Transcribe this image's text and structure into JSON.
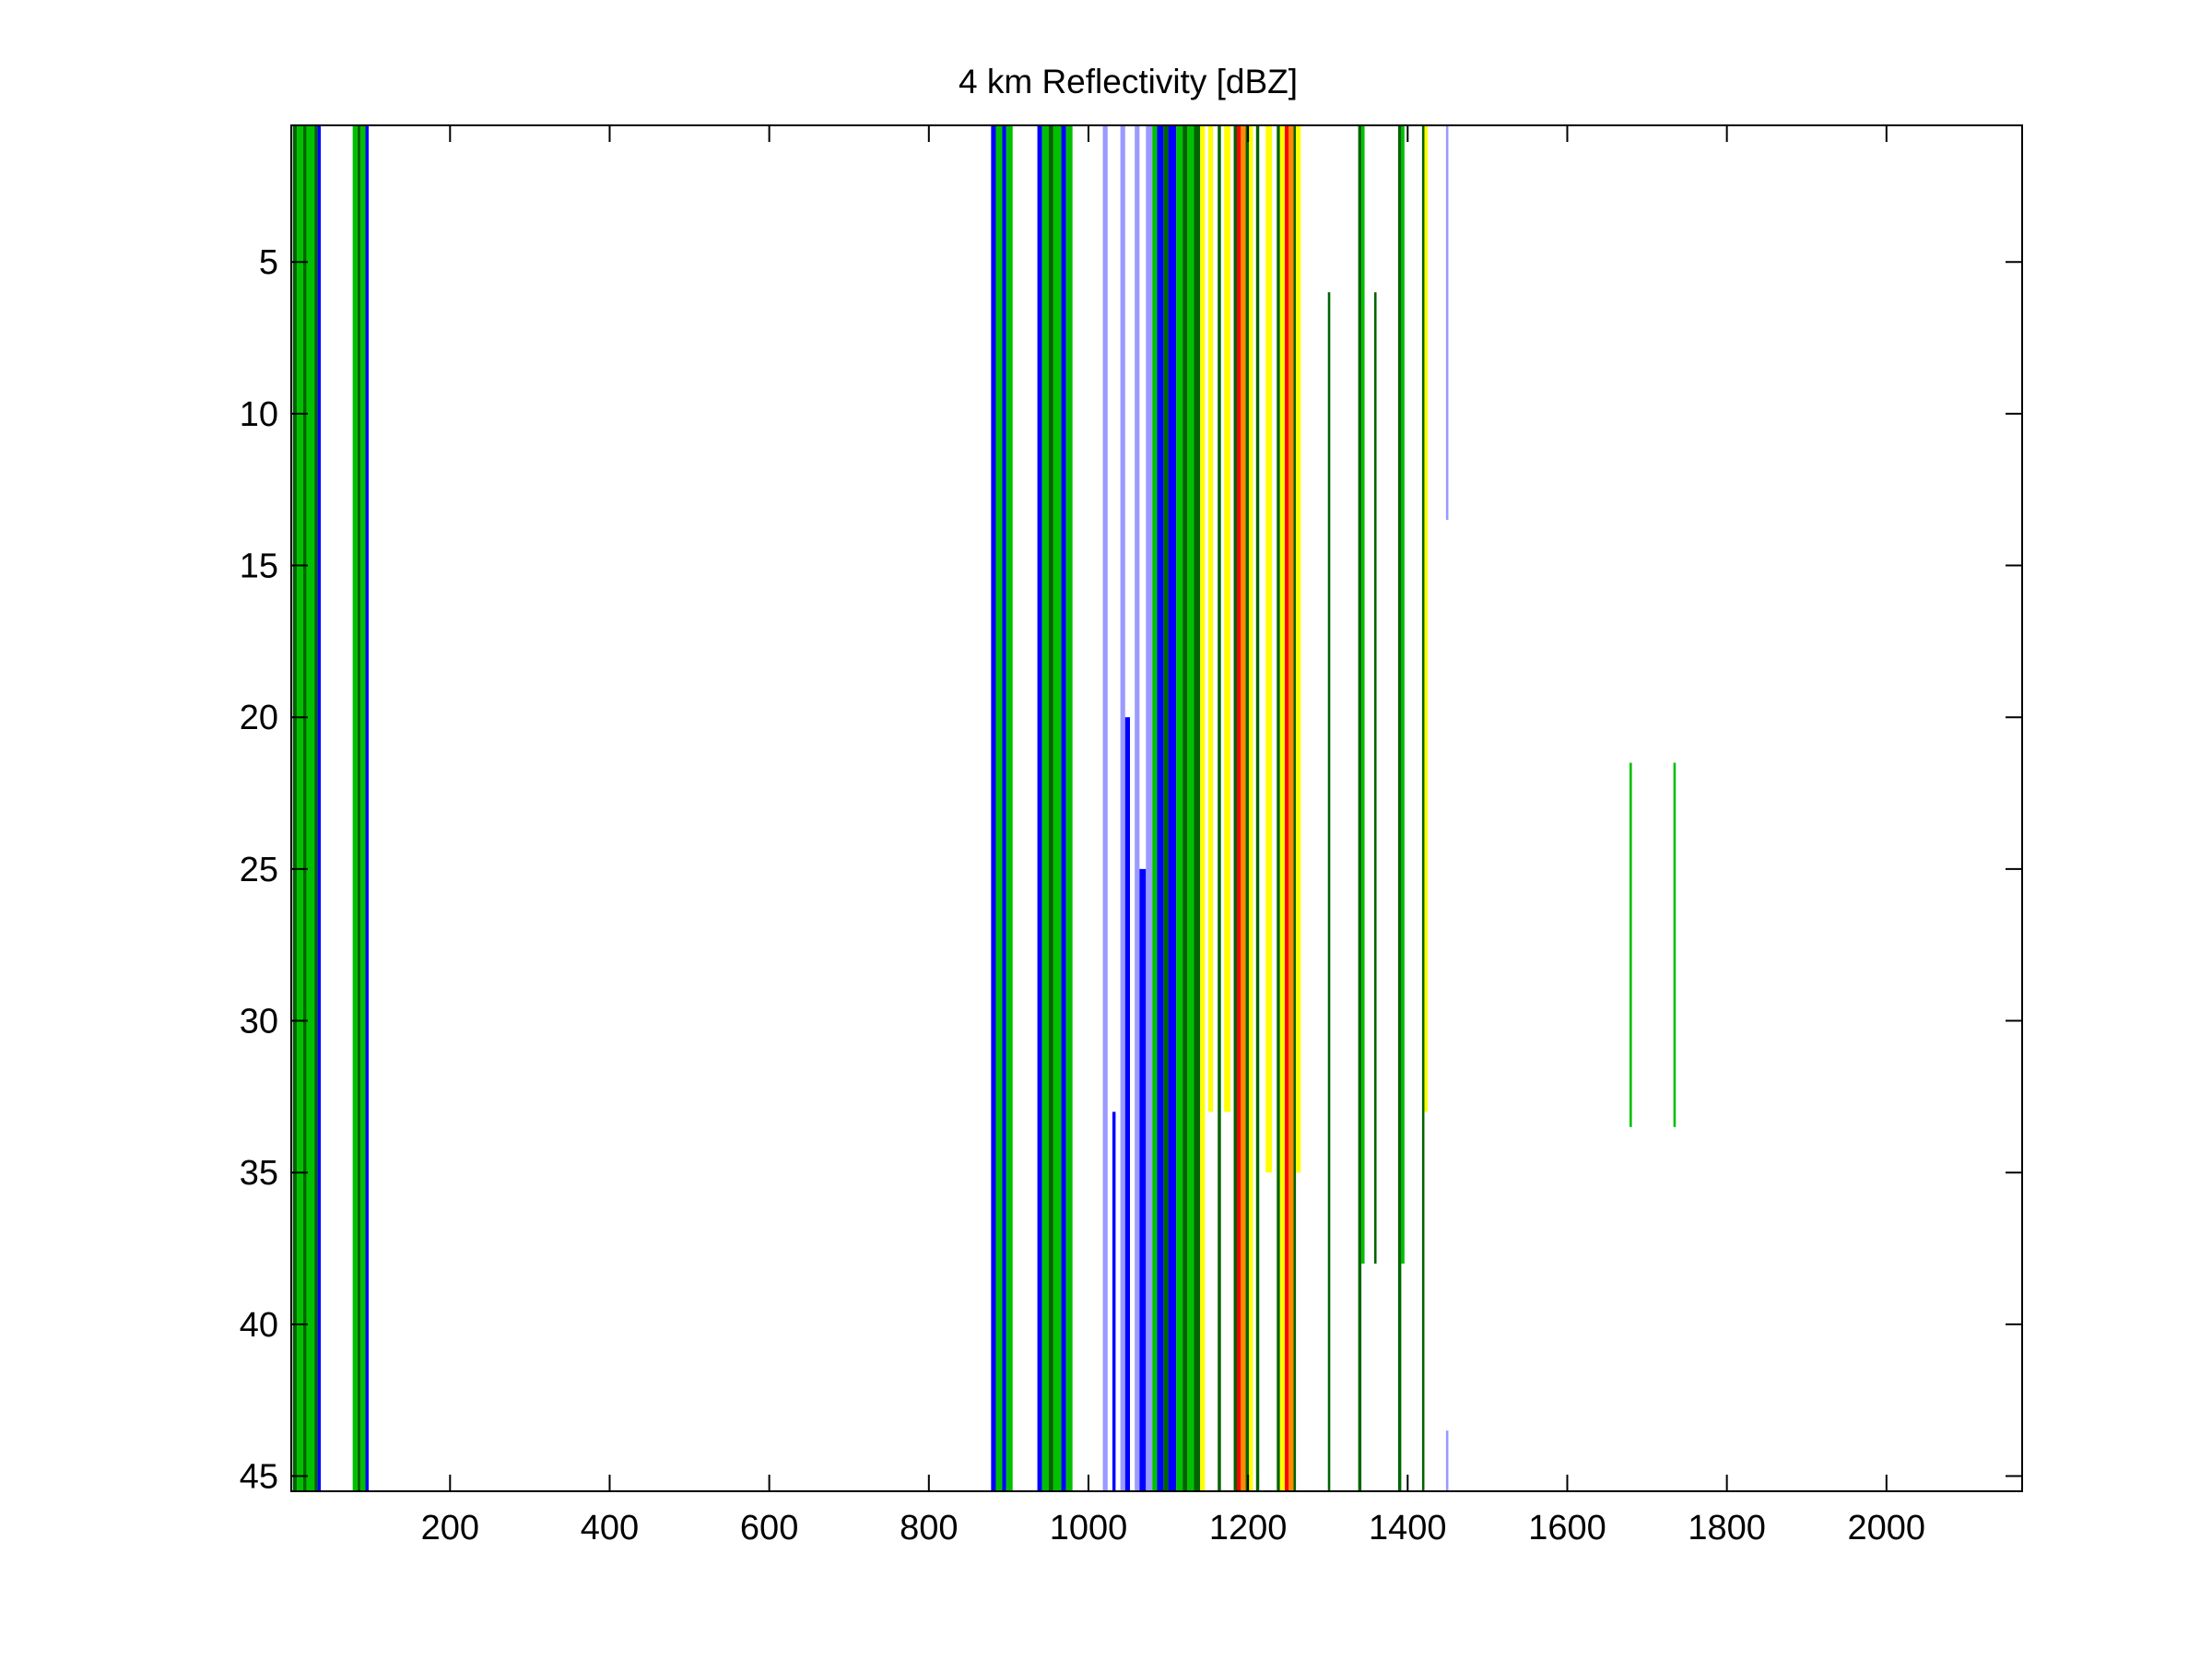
{
  "chart_data": {
    "type": "heatmap",
    "title": "4 km Reflectivity [dBZ]",
    "xlabel": "",
    "ylabel": "",
    "xlim": [
      1,
      2170
    ],
    "ylim": [
      0.5,
      45.5
    ],
    "y_reversed": true,
    "grid": false,
    "x_ticks": [
      200,
      400,
      600,
      800,
      1000,
      1200,
      1400,
      1600,
      1800,
      2000
    ],
    "y_ticks": [
      5,
      10,
      15,
      20,
      25,
      30,
      35,
      40,
      45
    ],
    "colors": {
      "blue": "#0000ff",
      "light_blue": "#9a9aff",
      "green": "#00c000",
      "dark_green": "#006400",
      "yellow": "#ffff00",
      "orange": "#ff8c00",
      "red": "#ff0000"
    },
    "bands": [
      {
        "x0": 3,
        "x1": 8,
        "y0": 0.5,
        "y1": 45.5,
        "level": "dark_green"
      },
      {
        "x0": 8,
        "x1": 16,
        "y0": 0.5,
        "y1": 45.5,
        "level": "green"
      },
      {
        "x0": 16,
        "x1": 20,
        "y0": 0.5,
        "y1": 45.5,
        "level": "dark_green"
      },
      {
        "x0": 20,
        "x1": 30,
        "y0": 0.5,
        "y1": 45.5,
        "level": "green"
      },
      {
        "x0": 30,
        "x1": 34,
        "y0": 0.5,
        "y1": 45.5,
        "level": "dark_green"
      },
      {
        "x0": 34,
        "x1": 38,
        "y0": 0.5,
        "y1": 45.5,
        "level": "blue"
      },
      {
        "x0": 78,
        "x1": 84,
        "y0": 0.5,
        "y1": 45.5,
        "level": "green"
      },
      {
        "x0": 84,
        "x1": 88,
        "y0": 0.5,
        "y1": 45.5,
        "level": "dark_green"
      },
      {
        "x0": 88,
        "x1": 94,
        "y0": 0.5,
        "y1": 45.5,
        "level": "green"
      },
      {
        "x0": 94,
        "x1": 98,
        "y0": 0.5,
        "y1": 45.5,
        "level": "blue"
      },
      {
        "x0": 878,
        "x1": 884,
        "y0": 0.5,
        "y1": 45.5,
        "level": "blue"
      },
      {
        "x0": 884,
        "x1": 892,
        "y0": 0.5,
        "y1": 45.5,
        "level": "green"
      },
      {
        "x0": 892,
        "x1": 897,
        "y0": 0.5,
        "y1": 45.5,
        "level": "blue"
      },
      {
        "x0": 897,
        "x1": 905,
        "y0": 0.5,
        "y1": 45.5,
        "level": "green"
      },
      {
        "x0": 936,
        "x1": 942,
        "y0": 0.5,
        "y1": 45.5,
        "level": "blue"
      },
      {
        "x0": 942,
        "x1": 950,
        "y0": 0.5,
        "y1": 45.5,
        "level": "green"
      },
      {
        "x0": 950,
        "x1": 956,
        "y0": 0.5,
        "y1": 45.5,
        "level": "dark_green"
      },
      {
        "x0": 956,
        "x1": 966,
        "y0": 0.5,
        "y1": 45.5,
        "level": "green"
      },
      {
        "x0": 966,
        "x1": 972,
        "y0": 0.5,
        "y1": 45.5,
        "level": "blue"
      },
      {
        "x0": 972,
        "x1": 980,
        "y0": 0.5,
        "y1": 45.5,
        "level": "green"
      },
      {
        "x0": 1018,
        "x1": 1024,
        "y0": 0.5,
        "y1": 45.5,
        "level": "light_blue"
      },
      {
        "x0": 1030,
        "x1": 1034,
        "y0": 33,
        "y1": 45.5,
        "level": "blue"
      },
      {
        "x0": 1040,
        "x1": 1046,
        "y0": 0.5,
        "y1": 45.5,
        "level": "light_blue"
      },
      {
        "x0": 1046,
        "x1": 1052,
        "y0": 20,
        "y1": 45.5,
        "level": "blue"
      },
      {
        "x0": 1058,
        "x1": 1064,
        "y0": 0.5,
        "y1": 45.5,
        "level": "light_blue"
      },
      {
        "x0": 1064,
        "x1": 1072,
        "y0": 25,
        "y1": 45.5,
        "level": "blue"
      },
      {
        "x0": 1072,
        "x1": 1080,
        "y0": 0.5,
        "y1": 45.5,
        "level": "light_blue"
      },
      {
        "x0": 1080,
        "x1": 1086,
        "y0": 0.5,
        "y1": 45.5,
        "level": "green"
      },
      {
        "x0": 1086,
        "x1": 1094,
        "y0": 0.5,
        "y1": 45.5,
        "level": "blue"
      },
      {
        "x0": 1094,
        "x1": 1100,
        "y0": 0.5,
        "y1": 45.5,
        "level": "dark_green"
      },
      {
        "x0": 1100,
        "x1": 1110,
        "y0": 0.5,
        "y1": 45.5,
        "level": "blue"
      },
      {
        "x0": 1110,
        "x1": 1118,
        "y0": 0.5,
        "y1": 45.5,
        "level": "green"
      },
      {
        "x0": 1118,
        "x1": 1124,
        "y0": 0.5,
        "y1": 45.5,
        "level": "dark_green"
      },
      {
        "x0": 1124,
        "x1": 1132,
        "y0": 0.5,
        "y1": 45.5,
        "level": "green"
      },
      {
        "x0": 1132,
        "x1": 1140,
        "y0": 0.5,
        "y1": 45.5,
        "level": "dark_green"
      },
      {
        "x0": 1140,
        "x1": 1146,
        "y0": 0.5,
        "y1": 45.5,
        "level": "yellow"
      },
      {
        "x0": 1150,
        "x1": 1156,
        "y0": 0.5,
        "y1": 33,
        "level": "yellow"
      },
      {
        "x0": 1162,
        "x1": 1166,
        "y0": 0.5,
        "y1": 45.5,
        "level": "dark_green"
      },
      {
        "x0": 1170,
        "x1": 1178,
        "y0": 0.5,
        "y1": 33,
        "level": "yellow"
      },
      {
        "x0": 1182,
        "x1": 1186,
        "y0": 0.5,
        "y1": 45.5,
        "level": "dark_green"
      },
      {
        "x0": 1186,
        "x1": 1191,
        "y0": 0.5,
        "y1": 45.5,
        "level": "red"
      },
      {
        "x0": 1191,
        "x1": 1197,
        "y0": 0.5,
        "y1": 45.5,
        "level": "orange"
      },
      {
        "x0": 1197,
        "x1": 1201,
        "y0": 0.5,
        "y1": 45.5,
        "level": "dark_green"
      },
      {
        "x0": 1201,
        "x1": 1206,
        "y0": 0.5,
        "y1": 45.5,
        "level": "yellow"
      },
      {
        "x0": 1210,
        "x1": 1214,
        "y0": 0.5,
        "y1": 45.5,
        "level": "dark_green"
      },
      {
        "x0": 1222,
        "x1": 1230,
        "y0": 0.5,
        "y1": 35,
        "level": "yellow"
      },
      {
        "x0": 1236,
        "x1": 1240,
        "y0": 0.5,
        "y1": 45.5,
        "level": "dark_green"
      },
      {
        "x0": 1240,
        "x1": 1246,
        "y0": 0.5,
        "y1": 45.5,
        "level": "yellow"
      },
      {
        "x0": 1246,
        "x1": 1251,
        "y0": 0.5,
        "y1": 45.5,
        "level": "red"
      },
      {
        "x0": 1251,
        "x1": 1257,
        "y0": 0.5,
        "y1": 45.5,
        "level": "orange"
      },
      {
        "x0": 1257,
        "x1": 1260,
        "y0": 0.5,
        "y1": 45.5,
        "level": "dark_green"
      },
      {
        "x0": 1260,
        "x1": 1266,
        "y0": 0.5,
        "y1": 35,
        "level": "yellow"
      },
      {
        "x0": 1300,
        "x1": 1303,
        "y0": 6,
        "y1": 45.5,
        "level": "dark_green"
      },
      {
        "x0": 1338,
        "x1": 1342,
        "y0": 0.5,
        "y1": 45.5,
        "level": "dark_green"
      },
      {
        "x0": 1342,
        "x1": 1346,
        "y0": 0.5,
        "y1": 38,
        "level": "green"
      },
      {
        "x0": 1358,
        "x1": 1361,
        "y0": 6,
        "y1": 38,
        "level": "dark_green"
      },
      {
        "x0": 1388,
        "x1": 1392,
        "y0": 0.5,
        "y1": 45.5,
        "level": "dark_green"
      },
      {
        "x0": 1392,
        "x1": 1396,
        "y0": 0.5,
        "y1": 38,
        "level": "green"
      },
      {
        "x0": 1418,
        "x1": 1421,
        "y0": 0.5,
        "y1": 45.5,
        "level": "dark_green"
      },
      {
        "x0": 1421,
        "x1": 1425,
        "y0": 0.5,
        "y1": 33,
        "level": "yellow"
      },
      {
        "x0": 1448,
        "x1": 1451,
        "y0": 0.5,
        "y1": 13.5,
        "level": "light_blue"
      },
      {
        "x0": 1448,
        "x1": 1451,
        "y0": 43.5,
        "y1": 45.5,
        "level": "light_blue"
      },
      {
        "x0": 1678,
        "x1": 1681,
        "y0": 21.5,
        "y1": 33.5,
        "level": "green"
      },
      {
        "x0": 1733,
        "x1": 1736,
        "y0": 21.5,
        "y1": 33.5,
        "level": "green"
      }
    ]
  }
}
